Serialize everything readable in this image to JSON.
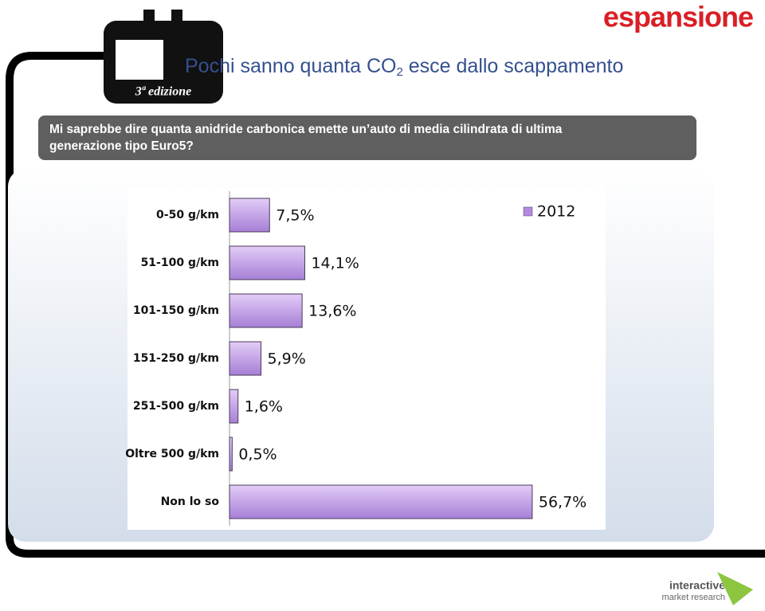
{
  "header": {
    "title_parts": [
      "Pochi sanno quanta CO",
      "2",
      " esce dallo scappamento"
    ],
    "badge": "3ª edizione",
    "logo": "espansione",
    "question": [
      "Mi saprebbe dire quanta anidride carbonica emette un’auto di media cilindrata di ultima",
      "generazione tipo Euro5?"
    ]
  },
  "chart_data": {
    "type": "hbar",
    "categories": [
      "0-50 g/km",
      "51-100 g/km",
      "101-150 g/km",
      "151-250 g/km",
      "251-500 g/km",
      "Oltre 500 g/km",
      "Non lo so"
    ],
    "series": [
      {
        "name": "2012",
        "color": "#b48ae0",
        "values": [
          7.5,
          14.1,
          13.6,
          5.9,
          1.6,
          0.5,
          56.7
        ],
        "value_labels": [
          "7,5%",
          "14,1%",
          "13,6%",
          "5,9%",
          "1,6%",
          "0,5%",
          "56,7%"
        ]
      }
    ],
    "xlim": [
      0,
      60
    ],
    "legend": "top-right"
  },
  "footer": {
    "brand": "interactive",
    "tagline": "market research"
  }
}
